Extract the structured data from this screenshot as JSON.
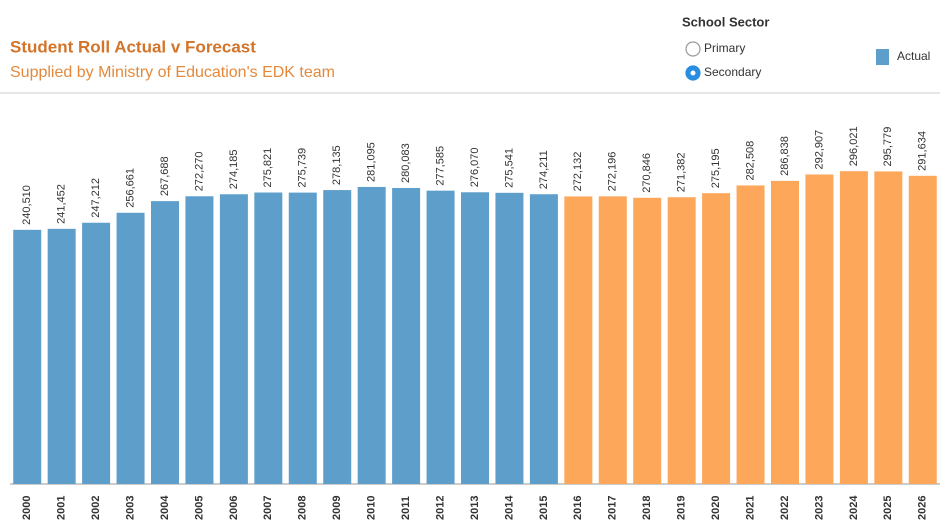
{
  "chart_data": {
    "type": "bar",
    "title": "Student Roll Actual v Forecast",
    "subtitle": "Supplied by Ministry of Education's EDK team",
    "categories": [
      "2000",
      "2001",
      "2002",
      "2003",
      "2004",
      "2005",
      "2006",
      "2007",
      "2008",
      "2009",
      "2010",
      "2011",
      "2012",
      "2013",
      "2014",
      "2015",
      "2016",
      "2017",
      "2018",
      "2019",
      "2020",
      "2021",
      "2022",
      "2023",
      "2024",
      "2025",
      "2026"
    ],
    "series": [
      {
        "name": "Actual",
        "color": "#5e9ecb",
        "values": [
          240510,
          241452,
          247212,
          256661,
          267688,
          272270,
          274185,
          275821,
          275739,
          278135,
          281095,
          280083,
          277585,
          276070,
          275541,
          274211,
          null,
          null,
          null,
          null,
          null,
          null,
          null,
          null,
          null,
          null,
          null
        ],
        "value_labels": [
          "240,510",
          "241,452",
          "247,212",
          "256,661",
          "267,688",
          "272,270",
          "274,185",
          "275,821",
          "275,739",
          "278,135",
          "281,095",
          "280,083",
          "277,585",
          "276,070",
          "275,541",
          "274,211",
          null,
          null,
          null,
          null,
          null,
          null,
          null,
          null,
          null,
          null,
          null
        ]
      },
      {
        "color": "#fda75b",
        "values": [
          null,
          null,
          null,
          null,
          null,
          null,
          null,
          null,
          null,
          null,
          null,
          null,
          null,
          null,
          null,
          null,
          272132,
          272196,
          270846,
          271382,
          275195,
          282508,
          286838,
          292907,
          296021,
          295779,
          291634
        ],
        "value_labels": [
          null,
          null,
          null,
          null,
          null,
          null,
          null,
          null,
          null,
          null,
          null,
          null,
          null,
          null,
          null,
          null,
          "272,132",
          "272,196",
          "270,846",
          "271,382",
          "275,195",
          "282,508",
          "286,838",
          "292,907",
          "296,021",
          "295,779",
          "291,634"
        ]
      }
    ],
    "ylim": [
      0,
      370000
    ],
    "legend": "top-right"
  },
  "controls": {
    "title": "School Sector",
    "options": [
      {
        "label": "Primary",
        "checked": false
      },
      {
        "label": "Secondary",
        "checked": true
      }
    ]
  }
}
